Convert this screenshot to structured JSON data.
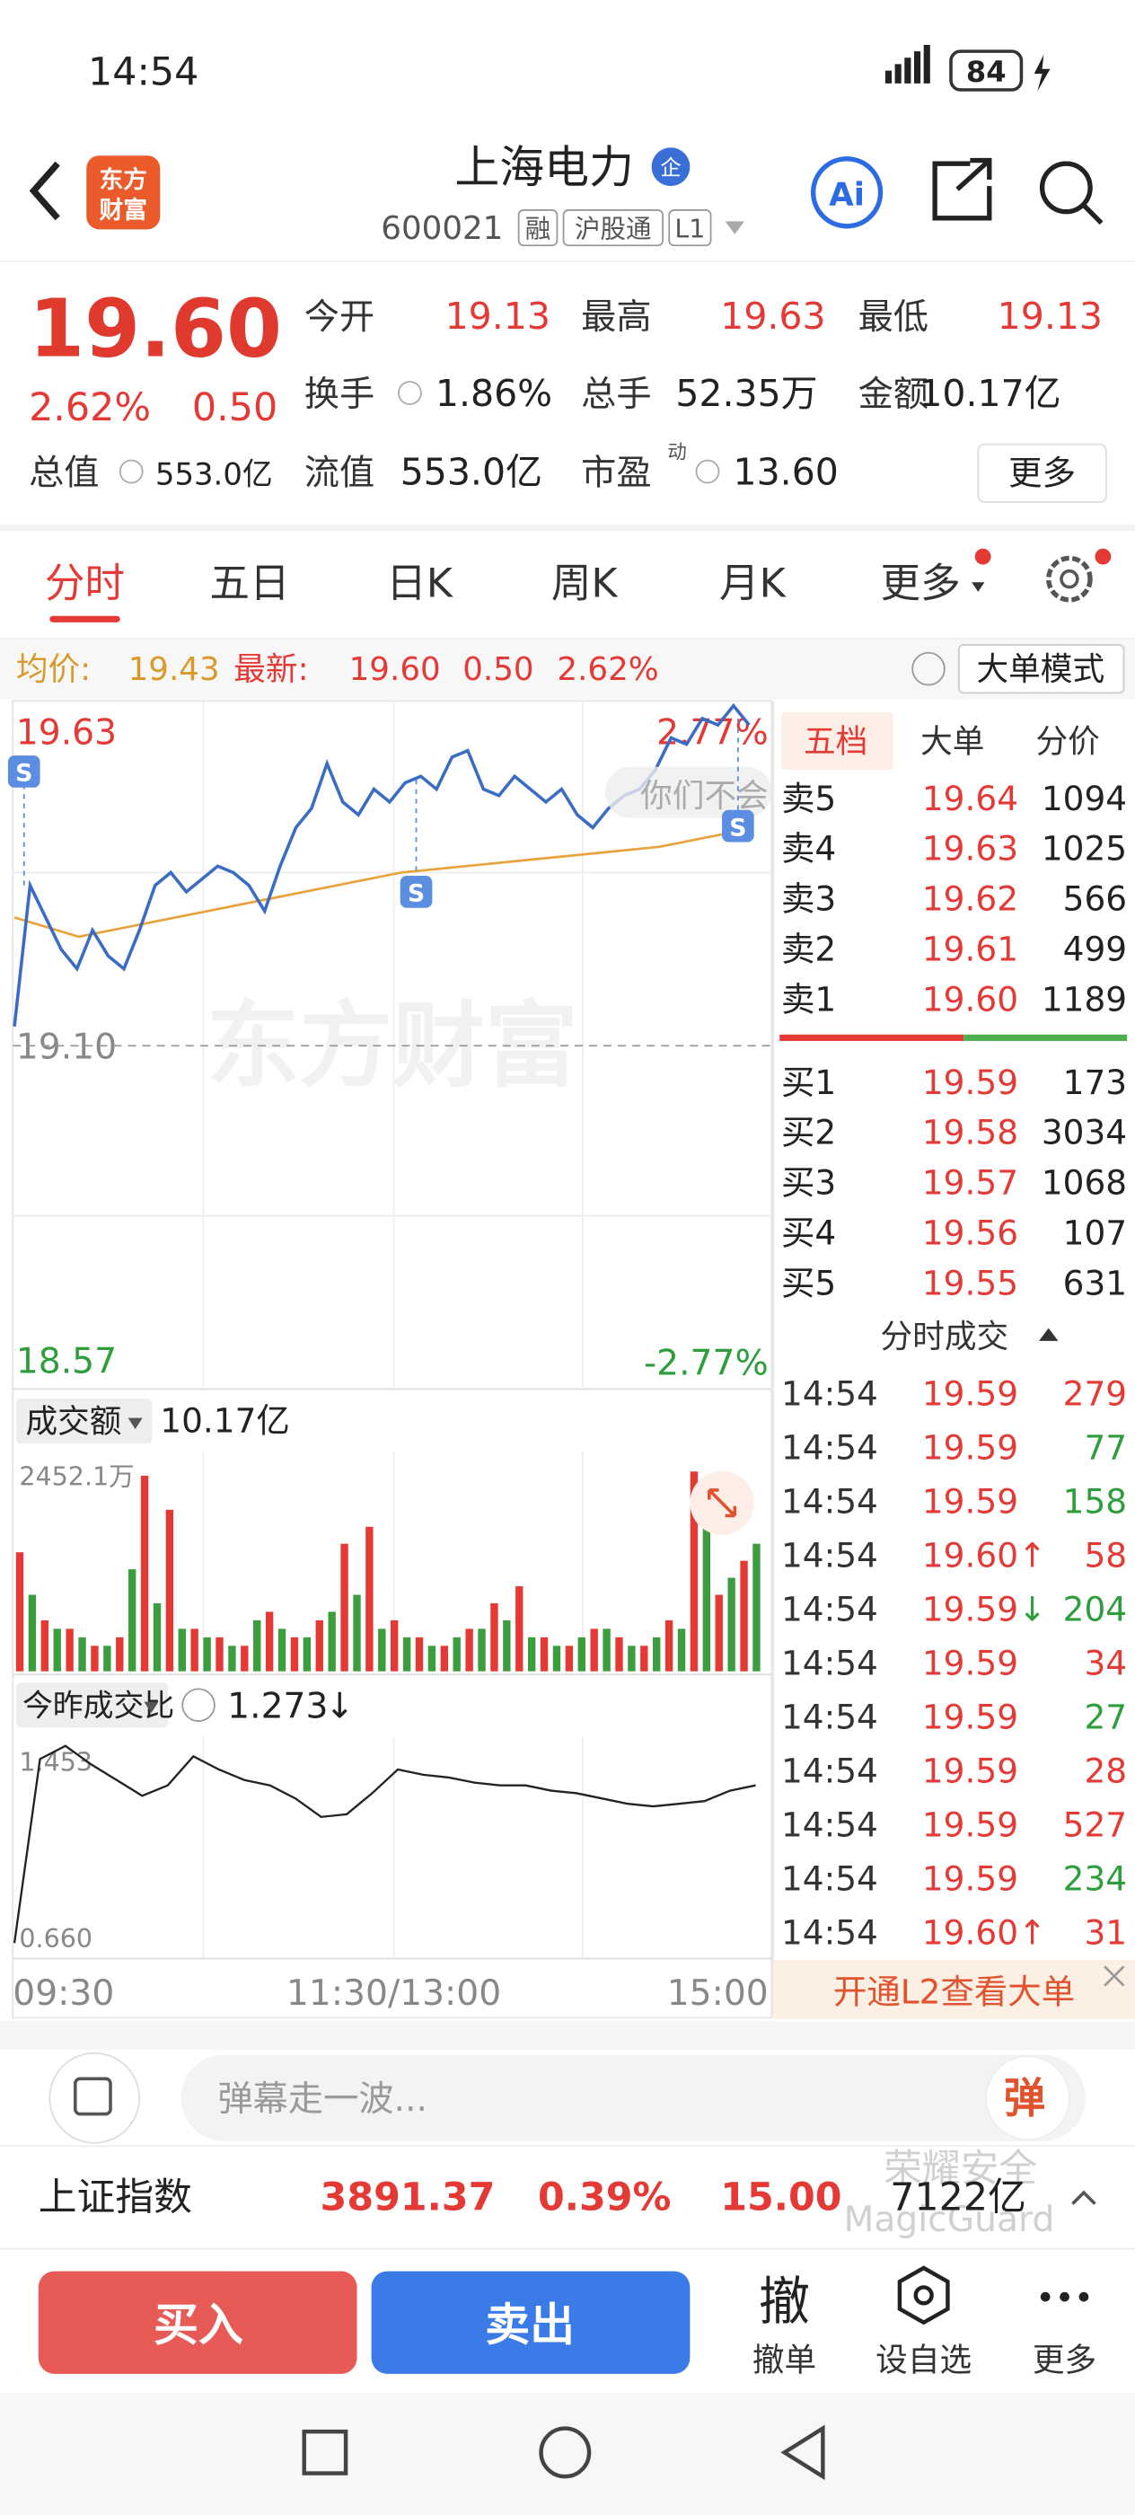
{
  "status_bar": {
    "time": "14:54",
    "battery": "84"
  },
  "header": {
    "logo": [
      "东方",
      "财富"
    ],
    "title": "上海电力",
    "badge": "企",
    "code": "600021",
    "tags": [
      "融",
      "沪股通",
      "L1"
    ],
    "ai": "Ai"
  },
  "quote": {
    "price": "19.60",
    "change_pct": "2.62%",
    "change": "0.50",
    "stats": [
      {
        "label": "今开",
        "value": "19.13"
      },
      {
        "label": "最高",
        "value": "19.63"
      },
      {
        "label": "最低",
        "value": "19.13"
      },
      {
        "label": "换手",
        "value": "1.86%"
      },
      {
        "label": "总手",
        "value": "52.35万"
      },
      {
        "label": "金额",
        "value": "10.17亿"
      },
      {
        "label": "总值",
        "value": "553.0亿"
      },
      {
        "label": "流值",
        "value": "553.0亿"
      },
      {
        "label": "市盈",
        "sup": "动",
        "value": "13.60"
      }
    ],
    "more": "更多"
  },
  "tabs": [
    "分时",
    "五日",
    "日K",
    "周K",
    "月K",
    "更多"
  ],
  "info_bar": {
    "avg_label": "均价:",
    "avg": "19.43",
    "latest_label": "最新:",
    "latest": "19.60",
    "change": "0.50",
    "change_pct": "2.62%",
    "mode_button": "大单模式"
  },
  "intraday": {
    "price": {
      "color": "#3b6cc4",
      "ylim": [
        18.57,
        19.63
      ],
      "yticks": [
        18.57,
        {
          "value": 19.1,
          "label": "19.10"
        },
        19.63
      ],
      "pct_labels": [
        "2.77%",
        "-2.77%"
      ],
      "values": [
        19.13,
        19.35,
        19.3,
        19.25,
        19.22,
        19.28,
        19.24,
        19.22,
        19.28,
        19.35,
        19.37,
        19.34,
        19.36,
        19.38,
        19.37,
        19.35,
        19.31,
        19.38,
        19.44,
        19.47,
        19.54,
        19.48,
        19.46,
        19.5,
        19.48,
        19.51,
        19.52,
        19.5,
        19.55,
        19.56,
        19.5,
        19.49,
        19.52,
        19.5,
        19.48,
        19.5,
        19.46,
        19.44,
        19.47,
        19.49,
        19.5,
        19.53,
        19.58,
        19.57,
        19.61,
        19.6,
        19.63,
        19.6
      ]
    },
    "average": {
      "color": "#e8a33d",
      "values": [
        19.3,
        19.27,
        19.29,
        19.31,
        19.33,
        19.35,
        19.37,
        19.38,
        19.39,
        19.4,
        19.41,
        19.43
      ]
    },
    "watermark": "东方财富",
    "bubble": "你们不会",
    "signal_markers": [
      "S",
      "S",
      "S"
    ],
    "volume": {
      "label": "成交额",
      "total": "10.17亿",
      "ylim": [
        0,
        2452.1
      ],
      "yticks": [
        {
          "value": 2452.1,
          "label": "2452.1万"
        }
      ],
      "series": [
        {
          "color": "#e53935",
          "values": [
            1400,
            600,
            500,
            300,
            400,
            2300,
            1900,
            500,
            400,
            300,
            700,
            400,
            600,
            1500,
            1700,
            600,
            400,
            300,
            500,
            800,
            1000,
            400,
            300,
            500,
            400,
            300,
            600,
            2350,
            900,
            1300
          ]
        },
        {
          "color": "#3c9d3f",
          "values": [
            900,
            500,
            400,
            300,
            1200,
            800,
            500,
            400,
            300,
            600,
            500,
            400,
            700,
            900,
            500,
            400,
            300,
            400,
            500,
            600,
            400,
            300,
            400,
            500,
            300,
            400,
            500,
            1900,
            1100,
            1500
          ]
        }
      ]
    },
    "ratio": {
      "label": "今昨成交比",
      "value": "1.273",
      "arrow": "↓",
      "color": "#222222",
      "ylim": [
        0.66,
        1.453
      ],
      "yticks": [
        {
          "value": 0.66,
          "label": "0.660"
        },
        1.453
      ],
      "values": [
        0.7,
        1.4,
        1.45,
        1.38,
        1.32,
        1.26,
        1.3,
        1.41,
        1.36,
        1.32,
        1.3,
        1.25,
        1.18,
        1.19,
        1.27,
        1.36,
        1.34,
        1.33,
        1.31,
        1.3,
        1.3,
        1.28,
        1.27,
        1.25,
        1.23,
        1.22,
        1.23,
        1.24,
        1.28,
        1.3
      ]
    },
    "time_labels": [
      "09:30",
      "11:30/13:00",
      "15:00"
    ]
  },
  "order_book": {
    "tabs": [
      "五档",
      "大单",
      "分价"
    ],
    "asks": [
      {
        "label": "卖5",
        "price": "19.64",
        "volume": 1094
      },
      {
        "label": "卖4",
        "price": "19.63",
        "volume": 1025
      },
      {
        "label": "卖3",
        "price": "19.62",
        "volume": 566
      },
      {
        "label": "卖2",
        "price": "19.61",
        "volume": 499
      },
      {
        "label": "卖1",
        "price": "19.60",
        "volume": 1189
      }
    ],
    "bids": [
      {
        "label": "买1",
        "price": "19.59",
        "volume": 173
      },
      {
        "label": "买2",
        "price": "19.58",
        "volume": 3034
      },
      {
        "label": "买3",
        "price": "19.57",
        "volume": 1068
      },
      {
        "label": "买4",
        "price": "19.56",
        "volume": 107
      },
      {
        "label": "买5",
        "price": "19.55",
        "volume": 631
      }
    ]
  },
  "trades": {
    "title": "分时成交",
    "rows": [
      {
        "time": "14:54",
        "price": "19.59",
        "volume": 279,
        "color": "#e53935"
      },
      {
        "time": "14:54",
        "price": "19.59",
        "volume": 77,
        "color": "#2e9e3c"
      },
      {
        "time": "14:54",
        "price": "19.59",
        "volume": 158,
        "color": "#2e9e3c"
      },
      {
        "time": "14:54",
        "price": "19.60",
        "arrow": "↑",
        "arrow_color": "#e53935",
        "volume": 58,
        "color": "#e53935"
      },
      {
        "time": "14:54",
        "price": "19.59",
        "arrow": "↓",
        "arrow_color": "#2e9e3c",
        "volume": 204,
        "color": "#2e9e3c"
      },
      {
        "time": "14:54",
        "price": "19.59",
        "volume": 34,
        "color": "#e53935"
      },
      {
        "time": "14:54",
        "price": "19.59",
        "volume": 27,
        "color": "#2e9e3c"
      },
      {
        "time": "14:54",
        "price": "19.59",
        "volume": 28,
        "color": "#e53935"
      },
      {
        "time": "14:54",
        "price": "19.59",
        "volume": 527,
        "color": "#e53935"
      },
      {
        "time": "14:54",
        "price": "19.59",
        "volume": 234,
        "color": "#2e9e3c"
      },
      {
        "time": "14:54",
        "price": "19.60",
        "arrow": "↑",
        "arrow_color": "#e53935",
        "volume": 31,
        "color": "#e53935"
      }
    ]
  },
  "l2_banner": "开通L2查看大单",
  "comment": {
    "placeholder": "弹幕走一波...",
    "button": "弹"
  },
  "index_bar": {
    "name": "上证指数",
    "value": "3891.37",
    "change_pct": "0.39%",
    "change": "15.00",
    "turnover": "7122亿",
    "watermark": [
      "荣耀安全",
      "MagicGuard"
    ]
  },
  "actions": {
    "buy": "买入",
    "sell": "卖出",
    "cancel_icon": "撤",
    "cancel": "撤单",
    "watchlist": "设自选",
    "more": "更多"
  }
}
